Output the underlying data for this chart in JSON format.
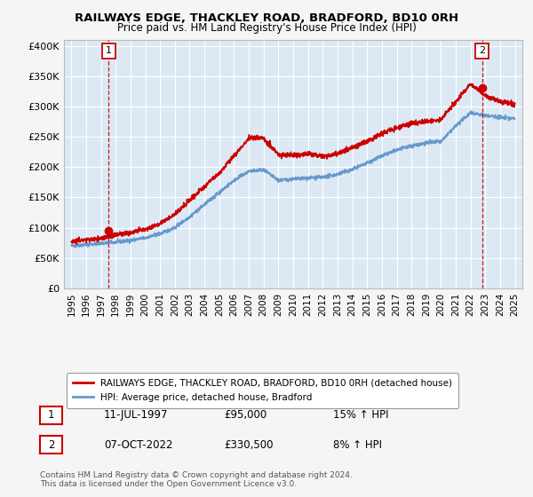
{
  "title_line1": "RAILWAYS EDGE, THACKLEY ROAD, BRADFORD, BD10 0RH",
  "title_line2": "Price paid vs. HM Land Registry's House Price Index (HPI)",
  "legend_line1": "RAILWAYS EDGE, THACKLEY ROAD, BRADFORD, BD10 0RH (detached house)",
  "legend_line2": "HPI: Average price, detached house, Bradford",
  "annotation1_date": "11-JUL-1997",
  "annotation1_price": "£95,000",
  "annotation1_hpi": "15% ↑ HPI",
  "annotation2_date": "07-OCT-2022",
  "annotation2_price": "£330,500",
  "annotation2_hpi": "8% ↑ HPI",
  "footnote": "Contains HM Land Registry data © Crown copyright and database right 2024.\nThis data is licensed under the Open Government Licence v3.0.",
  "sale1_x": 1997.53,
  "sale1_y": 95000,
  "sale2_x": 2022.77,
  "sale2_y": 330500,
  "price_color": "#cc0000",
  "hpi_color": "#6699cc",
  "background_color": "#dce9f5",
  "grid_color": "#ffffff",
  "ylim_min": 0,
  "ylim_max": 410000,
  "xlim_min": 1994.5,
  "xlim_max": 2025.5,
  "yticks": [
    0,
    50000,
    100000,
    150000,
    200000,
    250000,
    300000,
    350000,
    400000
  ],
  "ytick_labels": [
    "£0",
    "£50K",
    "£100K",
    "£150K",
    "£200K",
    "£250K",
    "£300K",
    "£350K",
    "£400K"
  ],
  "xtick_years": [
    1995,
    1996,
    1997,
    1998,
    1999,
    2000,
    2001,
    2002,
    2003,
    2004,
    2005,
    2006,
    2007,
    2008,
    2009,
    2010,
    2011,
    2012,
    2013,
    2014,
    2015,
    2016,
    2017,
    2018,
    2019,
    2020,
    2021,
    2022,
    2023,
    2024,
    2025
  ]
}
